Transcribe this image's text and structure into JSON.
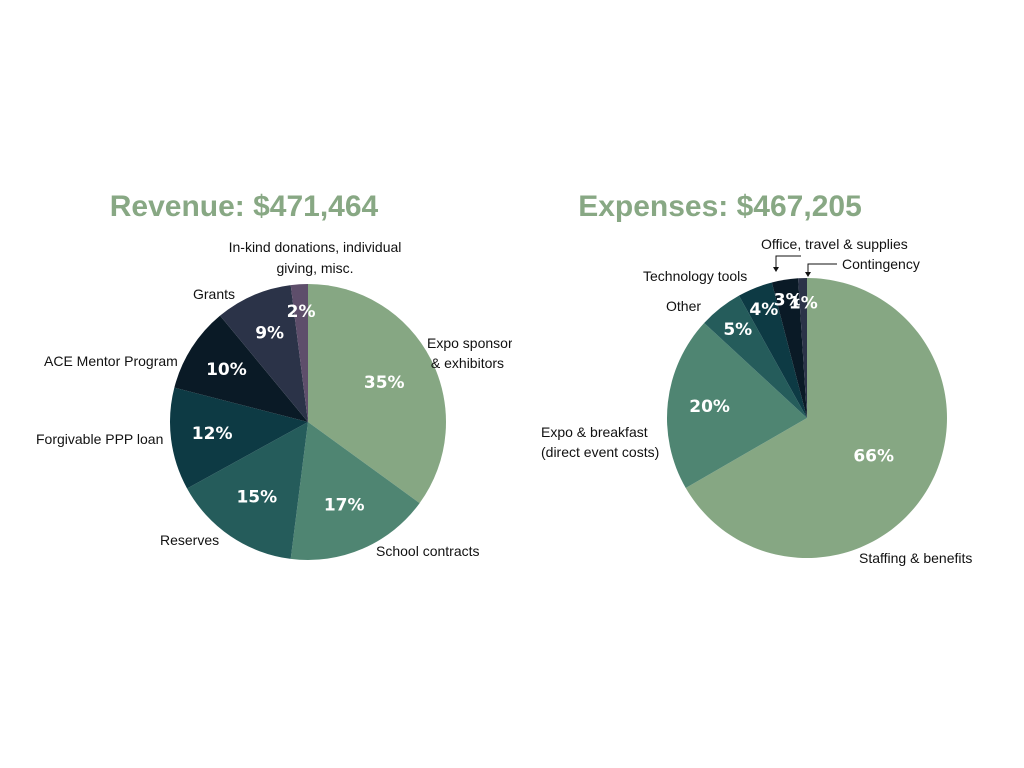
{
  "chart_data": [
    {
      "type": "pie",
      "title": "Revenue: $471,464",
      "slices": [
        {
          "label": "Expo sponsorships & exhibitors",
          "value": 35,
          "display": "35%",
          "color": "#86a783"
        },
        {
          "label": "School contracts",
          "value": 17,
          "display": "17%",
          "color": "#4f8572"
        },
        {
          "label": "Reserves",
          "value": 15,
          "display": "15%",
          "color": "#255c5b"
        },
        {
          "label": "Forgivable PPP loan",
          "value": 12,
          "display": "12%",
          "color": "#0d3a44"
        },
        {
          "label": "ACE Mentor Program",
          "value": 10,
          "display": "10%",
          "color": "#0a1a26"
        },
        {
          "label": "Grants",
          "value": 9,
          "display": "9%",
          "color": "#2b3348"
        },
        {
          "label": "In-kind donations, individual giving, misc.",
          "value": 2,
          "display": "2%",
          "color": "#5e4e6b"
        }
      ]
    },
    {
      "type": "pie",
      "title": "Expenses: $467,205",
      "slices": [
        {
          "label": "Staffing & benefits",
          "value": 66,
          "display": "66%",
          "color": "#86a783"
        },
        {
          "label": "Expo & breakfast (direct event costs)",
          "value": 20,
          "display": "20%",
          "color": "#4f8572"
        },
        {
          "label": "Other",
          "value": 5,
          "display": "5%",
          "color": "#255c5b"
        },
        {
          "label": "Technology tools",
          "value": 4,
          "display": "4%",
          "color": "#0d3a44"
        },
        {
          "label": "Office, travel & supplies",
          "value": 3,
          "display": "3%",
          "color": "#0a1a26"
        },
        {
          "label": "Contingency",
          "value": 1,
          "display": "1%",
          "color": "#2b3348"
        }
      ]
    }
  ]
}
